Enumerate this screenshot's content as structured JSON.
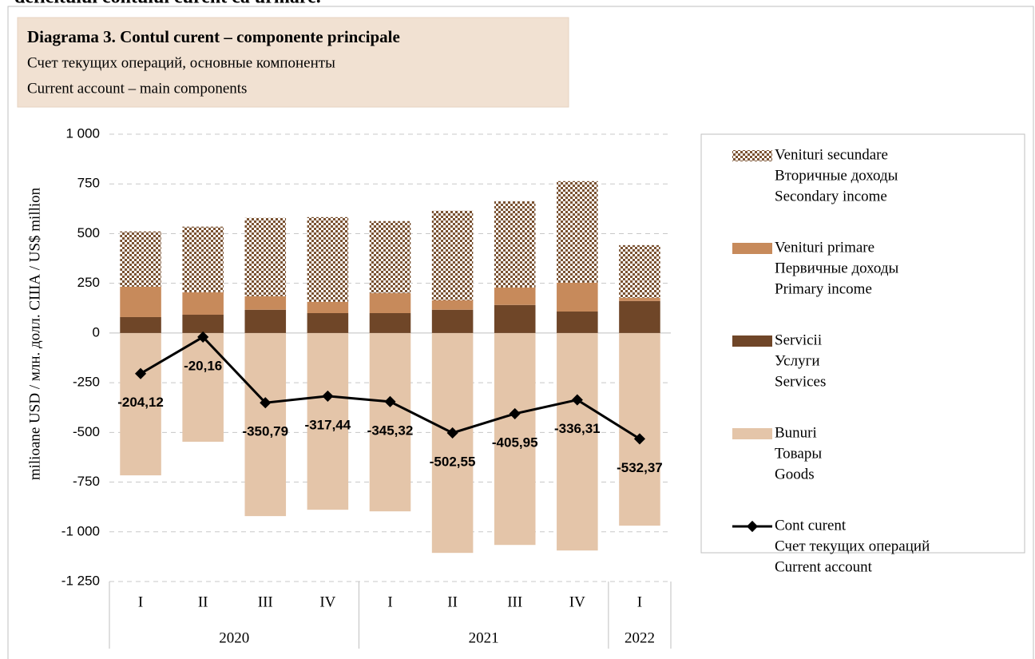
{
  "header": {
    "text": "deficitului contului curent ca urmare."
  },
  "chart_data": {
    "type": "bar_line",
    "title": "Diagrama 3. Contul curent – componente principale",
    "subtitle_ru": "Счет текущих операций, основные компоненты",
    "subtitle_en": "Current account – main components",
    "y_label": "milioane USD / млн. долл. США / US$ million",
    "categories": [
      "I",
      "II",
      "III",
      "IV",
      "I",
      "II",
      "III",
      "IV",
      "I"
    ],
    "groups": [
      {
        "label": "2020",
        "span": 4
      },
      {
        "label": "2021",
        "span": 4
      },
      {
        "label": "2022",
        "span": 1
      }
    ],
    "ylim": [
      -1250,
      1000
    ],
    "yticks": [
      {
        "value": 1000,
        "label": "1 000"
      },
      750,
      500,
      250,
      0,
      -250,
      -500,
      -750,
      {
        "value": -1000,
        "label": "-1 000"
      },
      {
        "value": -1250,
        "label": "-1 250"
      }
    ],
    "grid": true,
    "series": [
      {
        "name": "Venituri secundare",
        "name_ru": "Вторичные доходы",
        "name_en": "Secondary income",
        "kind": "bar",
        "stack": "pos",
        "pattern": "checker",
        "color": "#7a5232",
        "values": [
          278,
          330,
          394,
          426,
          362,
          450,
          434,
          511,
          265
        ]
      },
      {
        "name": "Venituri primare",
        "name_ru": "Первичные доходы",
        "name_en": "Primary income",
        "kind": "bar",
        "stack": "pos",
        "color": "#c78a5b",
        "values": [
          153,
          113,
          68,
          57,
          101,
          48,
          88,
          145,
          16
        ]
      },
      {
        "name": "Servicii",
        "name_ru": "Услуги",
        "name_en": "Services",
        "kind": "bar",
        "stack": "pos",
        "color": "#6f4628",
        "values": [
          80,
          92,
          117,
          100,
          100,
          117,
          141,
          108,
          161
        ]
      },
      {
        "name": "Bunuri",
        "name_ru": "Товары",
        "name_en": "Goods",
        "kind": "bar",
        "stack": "neg",
        "color": "#e4c5a9",
        "values": [
          -716,
          -547,
          -921,
          -889,
          -897,
          -1106,
          -1066,
          -1094,
          -969
        ]
      },
      {
        "name": "Cont curent",
        "name_ru": "Счет текущих операций",
        "name_en": "Current account",
        "kind": "line",
        "color": "#000000",
        "values": [
          -204.12,
          -20.16,
          -350.79,
          -317.44,
          -345.32,
          -502.55,
          -405.95,
          -336.31,
          -532.37
        ],
        "value_labels": [
          "-204,12",
          "-20,16",
          "-350,79",
          "-317,44",
          "-345,32",
          "-502,55",
          "-405,95",
          "-336,31",
          "-532,37"
        ]
      }
    ]
  }
}
